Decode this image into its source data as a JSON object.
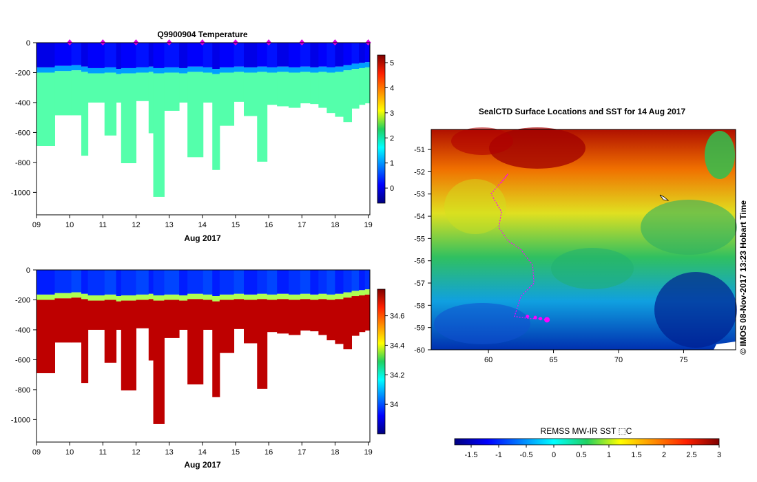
{
  "chart_data": [
    {
      "id": "temperature-section",
      "type": "heatmap",
      "title": "Q9900904  Temperature",
      "xlabel": "Aug 2017",
      "ylabel": "",
      "x_ticks": [
        "09",
        "10",
        "11",
        "12",
        "13",
        "14",
        "15",
        "16",
        "17",
        "18",
        "19"
      ],
      "y_ticks": [
        "0",
        "-200",
        "-400",
        "-600",
        "-800",
        "-1000"
      ],
      "xlim": [
        9,
        19.05
      ],
      "ylim": [
        -1150,
        0
      ],
      "colorbar": {
        "ticks": [
          "0",
          "1",
          "2",
          "3",
          "4",
          "5"
        ],
        "range": [
          -0.6,
          5.3
        ]
      },
      "profile_times": [
        9.05,
        9.55,
        10.05,
        10.35,
        10.55,
        11.05,
        11.4,
        11.55,
        12.0,
        12.38,
        12.52,
        12.85,
        13.3,
        13.55,
        14.02,
        14.3,
        14.52,
        14.95,
        15.25,
        15.65,
        15.95,
        16.25,
        16.6,
        16.95,
        17.25,
        17.5,
        17.75,
        18.0,
        18.25,
        18.5,
        18.72,
        18.9
      ],
      "max_depth": [
        -690,
        -485,
        -485,
        -755,
        -400,
        -620,
        -400,
        -805,
        -390,
        -605,
        -1030,
        -455,
        -400,
        -765,
        -400,
        -850,
        -555,
        -395,
        -490,
        -795,
        -415,
        -425,
        -435,
        -405,
        -410,
        -435,
        -470,
        -495,
        -530,
        -440,
        -415,
        -405
      ],
      "mixed_layer_depth": [
        -165,
        -155,
        -150,
        -160,
        -170,
        -165,
        -175,
        -170,
        -165,
        -160,
        -170,
        -165,
        -170,
        -160,
        -165,
        -175,
        -165,
        -160,
        -165,
        -160,
        -165,
        -160,
        -165,
        -160,
        -165,
        -160,
        -165,
        -160,
        -150,
        -140,
        -135,
        -130
      ],
      "surface_value": 0.0,
      "deep_value": 2.1,
      "surface_marks": [
        10,
        11,
        12,
        13,
        14,
        15,
        16,
        17,
        18,
        19
      ]
    },
    {
      "id": "salinity-section",
      "type": "heatmap",
      "title": "",
      "xlabel": "Aug 2017",
      "ylabel": "",
      "x_ticks": [
        "09",
        "10",
        "11",
        "12",
        "13",
        "14",
        "15",
        "16",
        "17",
        "18",
        "19"
      ],
      "y_ticks": [
        "0",
        "-200",
        "-400",
        "-600",
        "-800",
        "-1000"
      ],
      "xlim": [
        9,
        19.05
      ],
      "ylim": [
        -1150,
        0
      ],
      "colorbar": {
        "ticks": [
          "34",
          "34.2",
          "34.4",
          "34.6"
        ],
        "range": [
          33.8,
          34.78
        ]
      },
      "surface_value": 33.95,
      "deep_value": 34.72
    },
    {
      "id": "sst-map",
      "type": "heatmap",
      "title": "SealCTD Surface Locations and SST for 14 Aug 2017",
      "xlabel": "",
      "ylabel": "",
      "x_ticks": [
        "60",
        "65",
        "70",
        "75"
      ],
      "y_ticks": [
        "-51",
        "-52",
        "-53",
        "-54",
        "-55",
        "-56",
        "-57",
        "-58",
        "-59",
        "-60"
      ],
      "xlim": [
        55.6,
        79
      ],
      "ylim": [
        -60,
        -50.1
      ],
      "colorbar": {
        "label": "REMSS MW-IR SST ⬚C",
        "ticks": [
          "-1.5",
          "-1",
          "-0.5",
          "0",
          "0.5",
          "1",
          "1.5",
          "2",
          "2.5",
          "3"
        ],
        "range": [
          -1.8,
          3.0
        ]
      },
      "track": [
        [
          61.0,
          -52.5
        ],
        [
          61.5,
          -52.1
        ],
        [
          60.2,
          -53.0
        ],
        [
          61.0,
          -53.8
        ],
        [
          60.8,
          -54.5
        ],
        [
          61.5,
          -55.1
        ],
        [
          62.5,
          -55.5
        ],
        [
          63.4,
          -56.2
        ],
        [
          63.5,
          -57.0
        ],
        [
          62.5,
          -57.6
        ],
        [
          62.0,
          -58.5
        ],
        [
          63.2,
          -58.6
        ],
        [
          64.0,
          -58.6
        ],
        [
          64.5,
          -58.65
        ]
      ],
      "animal_positions": [
        [
          63.0,
          -58.5
        ],
        [
          63.6,
          -58.55
        ],
        [
          64.0,
          -58.6
        ],
        [
          64.5,
          -58.65
        ]
      ],
      "side_text": "© IMOS 08-Nov-2017 13:23 Hobart Time"
    }
  ]
}
